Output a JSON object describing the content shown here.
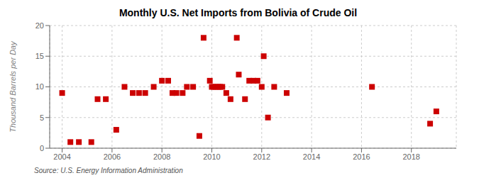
{
  "chart_data": {
    "type": "scatter",
    "title": "Monthly U.S. Net Imports from Bolivia of Crude Oil",
    "ylabel": "Thousand Barrels per Day",
    "source": "Source: U.S. Energy Information Administration",
    "color": "#cc0000",
    "marker": "square",
    "grid": true,
    "xlim": [
      2003.5,
      2019.8
    ],
    "xticks": [
      2004,
      2006,
      2008,
      2010,
      2012,
      2014,
      2016,
      2018
    ],
    "ylim": [
      0,
      20
    ],
    "yticks": [
      0,
      5,
      10,
      15,
      20
    ],
    "x": [
      2004.0,
      2004.33,
      2004.67,
      2005.17,
      2005.42,
      2005.75,
      2006.17,
      2006.5,
      2006.83,
      2007.08,
      2007.33,
      2007.67,
      2008.0,
      2008.25,
      2008.42,
      2008.58,
      2008.83,
      2009.0,
      2009.25,
      2009.5,
      2009.67,
      2009.92,
      2010.0,
      2010.08,
      2010.17,
      2010.25,
      2010.33,
      2010.42,
      2010.58,
      2010.75,
      2011.0,
      2011.08,
      2011.33,
      2011.5,
      2011.67,
      2011.83,
      2012.0,
      2012.08,
      2012.25,
      2012.5,
      2013.0,
      2016.42,
      2018.75,
      2019.0
    ],
    "values": [
      9,
      1,
      1,
      1,
      8,
      8,
      3,
      10,
      9,
      9,
      9,
      10,
      11,
      11,
      9,
      9,
      9,
      10,
      10,
      2,
      18,
      11,
      10,
      10,
      10,
      10,
      10,
      10,
      9,
      8,
      18,
      12,
      8,
      11,
      11,
      11,
      10,
      15,
      5,
      10,
      9,
      10,
      4,
      6
    ]
  }
}
